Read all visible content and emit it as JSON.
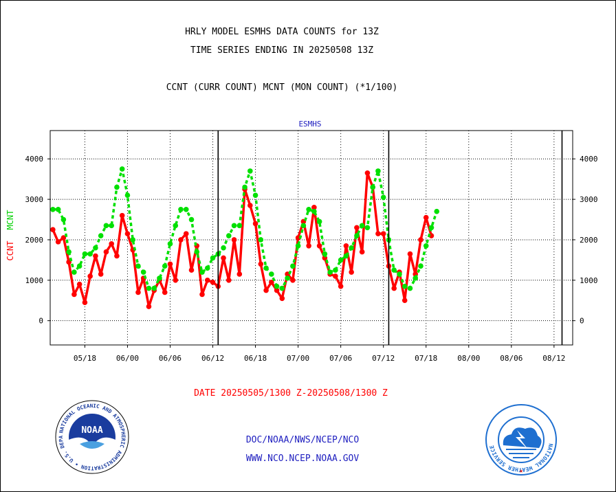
{
  "header": {
    "title_line1": "HRLY MODEL ESMHS DATA COUNTS for 13Z",
    "title_line2": "TIME SERIES ENDING IN 20250508 13Z",
    "subtitle": "CCNT (CURR COUNT) MCNT (MON COUNT) (*1/100)"
  },
  "chart_data": {
    "type": "line",
    "title": "ESMHS",
    "ylabel_ccnt": "CCNT",
    "ylabel_mcnt": "MCNT",
    "ylim": [
      -600,
      4700
    ],
    "yticks": [
      0,
      1000,
      2000,
      3000,
      4000
    ],
    "xlim": [
      0,
      98
    ],
    "xticks": [
      {
        "label": "05/18",
        "x": 6.5
      },
      {
        "label": "06/00",
        "x": 14.5
      },
      {
        "label": "06/06",
        "x": 22.5
      },
      {
        "label": "06/12",
        "x": 30.5
      },
      {
        "label": "06/18",
        "x": 38.5
      },
      {
        "label": "07/00",
        "x": 46.5
      },
      {
        "label": "07/06",
        "x": 54.5
      },
      {
        "label": "07/12",
        "x": 62.5
      },
      {
        "label": "07/18",
        "x": 70.5
      },
      {
        "label": "08/00",
        "x": 78.5
      },
      {
        "label": "08/06",
        "x": 86.5
      },
      {
        "label": "08/12",
        "x": 94.5
      }
    ],
    "day_boundaries": [
      31.5,
      63.5,
      96.0
    ],
    "grid": true,
    "series": [
      {
        "name": "CCNT",
        "color": "#ff0000",
        "values": [
          2250,
          1950,
          2050,
          1450,
          650,
          900,
          450,
          1100,
          1600,
          1150,
          1700,
          1900,
          1600,
          2600,
          2150,
          1750,
          700,
          1050,
          350,
          750,
          1000,
          700,
          1400,
          1000,
          2000,
          2150,
          1250,
          1850,
          650,
          1000,
          950,
          850,
          1550,
          1000,
          2000,
          1150,
          3250,
          2850,
          2400,
          1400,
          750,
          950,
          750,
          550,
          1150,
          1000,
          2050,
          2450,
          1850,
          2800,
          1850,
          1550,
          1150,
          1100,
          850,
          1850,
          1200,
          2300,
          1700,
          3650,
          3300,
          2150,
          2150,
          1350,
          800,
          1200,
          500,
          1650,
          1150,
          2000,
          2550,
          2100
        ]
      },
      {
        "name": "MCNT",
        "color": "#00e000",
        "values": [
          2750,
          2750,
          2500,
          1700,
          1200,
          1350,
          1650,
          1650,
          1800,
          2100,
          2350,
          2350,
          3300,
          3750,
          3100,
          2000,
          1350,
          1200,
          800,
          800,
          1050,
          1350,
          1900,
          2350,
          2750,
          2750,
          2500,
          1700,
          1200,
          1300,
          1550,
          1650,
          1800,
          2100,
          2350,
          2350,
          3300,
          3700,
          3100,
          2000,
          1300,
          1150,
          850,
          800,
          1050,
          1350,
          1850,
          2350,
          2750,
          2700,
          2450,
          1650,
          1200,
          1250,
          1500,
          1600,
          1800,
          2100,
          2350,
          2300,
          3300,
          3700,
          3050,
          2000,
          1250,
          1150,
          850,
          800,
          1050,
          1350,
          1850,
          2300,
          2700
        ]
      }
    ]
  },
  "footer": {
    "date_range": "DATE 20250505/1300 Z-20250508/1300 Z",
    "link1": "DOC/NOAA/NWS/NCEP/NCO",
    "link2": "WWW.NCO.NCEP.NOAA.GOV"
  },
  "logos": {
    "noaa_text": "NOAA",
    "noaa_ring": "NATIONAL OCEANIC AND ATMOSPHERIC ADMINISTRATION • U.S. DEPARTMENT OF COMMERCE •",
    "nws_ring": "NATIONAL WEATHER SERVICE"
  },
  "colors": {
    "ccnt": "#ff0000",
    "mcnt": "#00e000",
    "title_chart": "#2020c0",
    "date_range": "#ff0000",
    "links": "#2020c0",
    "noaa_blue": "#1a3c9e",
    "nws_blue": "#1e6fd0"
  }
}
